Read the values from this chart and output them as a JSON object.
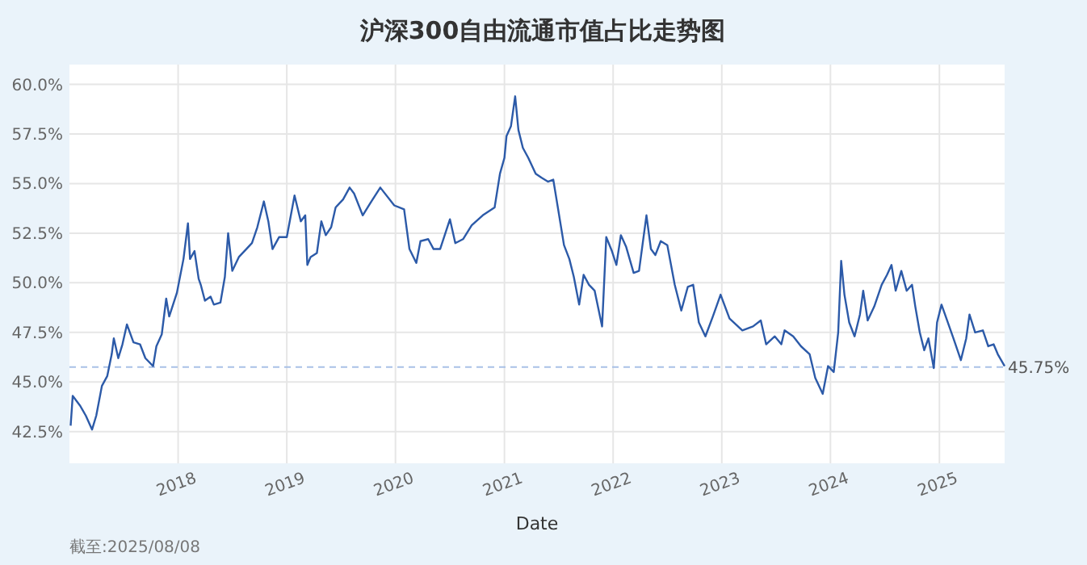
{
  "chart_data": {
    "type": "line",
    "title": "沪深300自由流通市值占比走势图",
    "xlabel": "Date",
    "annotations": [
      "截至:2025/08/08"
    ],
    "xlim": [
      "2017-01-01",
      "2025-08-08"
    ],
    "ylim": [
      40.9,
      61
    ],
    "xticks": [
      "2018",
      "2019",
      "2020",
      "2021",
      "2022",
      "2023",
      "2024",
      "2025"
    ],
    "yticks": [
      {
        "value": 42.5,
        "label": "42.5%"
      },
      {
        "value": 45,
        "label": "45.0%"
      },
      {
        "value": 47.5,
        "label": "47.5%"
      },
      {
        "value": 50,
        "label": "50.0%"
      },
      {
        "value": 52.5,
        "label": "52.5%"
      },
      {
        "value": 55,
        "label": "55.0%"
      },
      {
        "value": 57.5,
        "label": "57.5%"
      },
      {
        "value": 60,
        "label": "60.0%"
      }
    ],
    "grid": true,
    "line_style": "solid",
    "marker": "none",
    "ref_lines": [
      {
        "axis": "y",
        "value": 45.75,
        "label": "45.75%",
        "color": "#a9c1e6",
        "line_style": "dashed"
      }
    ],
    "series": [
      {
        "color": "#2c5aa8",
        "x": [
          "2017-01-05",
          "2017-01-12",
          "2017-02-06",
          "2017-02-25",
          "2017-03-18",
          "2017-04-01",
          "2017-04-20",
          "2017-05-08",
          "2017-05-23",
          "2017-05-30",
          "2017-06-14",
          "2017-06-28",
          "2017-07-13",
          "2017-08-04",
          "2017-08-26",
          "2017-09-13",
          "2017-10-09",
          "2017-10-20",
          "2017-11-07",
          "2017-11-22",
          "2017-12-02",
          "2017-12-28",
          "2018-01-19",
          "2018-02-03",
          "2018-02-10",
          "2018-02-25",
          "2018-03-11",
          "2018-03-18",
          "2018-04-01",
          "2018-04-20",
          "2018-05-01",
          "2018-05-23",
          "2018-06-07",
          "2018-06-18",
          "2018-07-02",
          "2018-07-24",
          "2018-08-18",
          "2018-09-06",
          "2018-09-24",
          "2018-10-16",
          "2018-10-31",
          "2018-11-14",
          "2018-12-06",
          "2019-01-01",
          "2019-01-27",
          "2019-02-17",
          "2019-03-04",
          "2019-03-11",
          "2019-03-22",
          "2019-04-12",
          "2019-04-27",
          "2019-05-12",
          "2019-05-30",
          "2019-06-14",
          "2019-07-09",
          "2019-07-31",
          "2019-08-15",
          "2019-09-13",
          "2019-10-12",
          "2019-11-11",
          "2019-12-28",
          "2020-01-30",
          "2020-02-17",
          "2020-03-11",
          "2020-03-25",
          "2020-04-20",
          "2020-05-08",
          "2020-05-30",
          "2020-07-02",
          "2020-07-20",
          "2020-08-15",
          "2020-09-13",
          "2020-10-20",
          "2020-11-29",
          "2020-12-17",
          "2021-01-01",
          "2021-01-08",
          "2021-01-23",
          "2021-02-06",
          "2021-02-17",
          "2021-03-04",
          "2021-03-22",
          "2021-04-16",
          "2021-05-05",
          "2021-05-27",
          "2021-06-14",
          "2021-06-25",
          "2021-07-20",
          "2021-08-07",
          "2021-08-22",
          "2021-09-09",
          "2021-09-24",
          "2021-10-12",
          "2021-10-31",
          "2021-11-25",
          "2021-12-09",
          "2021-12-28",
          "2022-01-12",
          "2022-01-27",
          "2022-02-14",
          "2022-03-11",
          "2022-03-29",
          "2022-04-23",
          "2022-05-08",
          "2022-05-23",
          "2022-06-10",
          "2022-07-02",
          "2022-07-27",
          "2022-08-18",
          "2022-09-09",
          "2022-09-27",
          "2022-10-16",
          "2022-11-07",
          "2022-12-02",
          "2022-12-28",
          "2023-01-27",
          "2023-03-11",
          "2023-04-16",
          "2023-05-12",
          "2023-05-30",
          "2023-06-28",
          "2023-07-20",
          "2023-07-31",
          "2023-08-29",
          "2023-09-24",
          "2023-10-23",
          "2023-11-11",
          "2023-12-06",
          "2023-12-24",
          "2024-01-12",
          "2024-01-27",
          "2024-02-06",
          "2024-02-17",
          "2024-03-04",
          "2024-03-22",
          "2024-04-09",
          "2024-04-20",
          "2024-05-05",
          "2024-05-27",
          "2024-06-21",
          "2024-07-09",
          "2024-07-24",
          "2024-08-07",
          "2024-08-26",
          "2024-09-13",
          "2024-10-01",
          "2024-10-12",
          "2024-10-27",
          "2024-11-11",
          "2024-11-25",
          "2024-12-13",
          "2024-12-24",
          "2025-01-08",
          "2025-01-27",
          "2025-02-17",
          "2025-03-14",
          "2025-04-01",
          "2025-04-12",
          "2025-05-01",
          "2025-05-27",
          "2025-06-14",
          "2025-07-02",
          "2025-07-16",
          "2025-08-08"
        ],
        "values": [
          42.8,
          44.3,
          43.8,
          43.3,
          42.6,
          43.3,
          44.8,
          45.3,
          46.4,
          47.2,
          46.2,
          46.9,
          47.9,
          47.0,
          46.9,
          46.2,
          45.8,
          46.8,
          47.4,
          49.2,
          48.3,
          49.5,
          51.2,
          53.0,
          51.2,
          51.6,
          50.2,
          49.9,
          49.1,
          49.3,
          48.9,
          49.0,
          50.3,
          52.5,
          50.6,
          51.3,
          51.7,
          52.0,
          52.8,
          54.1,
          53.1,
          51.7,
          52.3,
          52.3,
          54.4,
          53.1,
          53.4,
          50.9,
          51.3,
          51.5,
          53.1,
          52.4,
          52.8,
          53.8,
          54.2,
          54.8,
          54.5,
          53.4,
          54.1,
          54.8,
          53.9,
          53.7,
          51.7,
          51.0,
          52.1,
          52.2,
          51.7,
          51.7,
          53.2,
          52.0,
          52.2,
          52.9,
          53.4,
          53.8,
          55.5,
          56.3,
          57.4,
          57.9,
          59.4,
          57.7,
          56.8,
          56.3,
          55.5,
          55.3,
          55.1,
          55.2,
          54.2,
          51.9,
          51.2,
          50.3,
          48.9,
          50.4,
          49.9,
          49.6,
          47.8,
          52.3,
          51.6,
          50.9,
          52.4,
          51.8,
          50.5,
          50.6,
          53.4,
          51.7,
          51.4,
          52.1,
          51.9,
          49.9,
          48.6,
          49.8,
          49.9,
          48.0,
          47.3,
          48.3,
          49.4,
          48.2,
          47.6,
          47.8,
          48.1,
          46.9,
          47.3,
          46.9,
          47.6,
          47.3,
          46.8,
          46.4,
          45.2,
          44.4,
          45.8,
          45.5,
          47.5,
          51.1,
          49.4,
          48.0,
          47.3,
          48.4,
          49.6,
          48.1,
          48.8,
          49.9,
          50.4,
          50.9,
          49.6,
          50.6,
          49.6,
          49.9,
          48.8,
          47.5,
          46.6,
          47.2,
          45.7,
          48.0,
          48.9,
          48.1,
          47.2,
          46.1,
          47.2,
          48.4,
          47.5,
          47.6,
          46.8,
          46.9,
          46.4,
          45.8
        ]
      }
    ]
  }
}
